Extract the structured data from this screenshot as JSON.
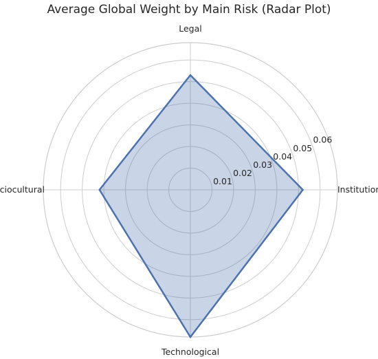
{
  "chart_data": {
    "type": "radar",
    "title": "Average Global Weight by Main Risk (Radar Plot)",
    "categories": [
      "Institutional",
      "Legal",
      "Sociocultural",
      "Technological"
    ],
    "values": [
      0.052,
      0.053,
      0.042,
      0.068
    ],
    "rlim": [
      0,
      0.068
    ],
    "rticks": [
      0.01,
      0.02,
      0.03,
      0.04,
      0.05,
      0.06
    ],
    "rtick_labels": [
      "0.01",
      "0.02",
      "0.03",
      "0.04",
      "0.05",
      "0.06"
    ],
    "grid": true,
    "colors": {
      "line": "#4c72b0",
      "fill": "#4c72b0",
      "grid": "#cccccc"
    }
  }
}
